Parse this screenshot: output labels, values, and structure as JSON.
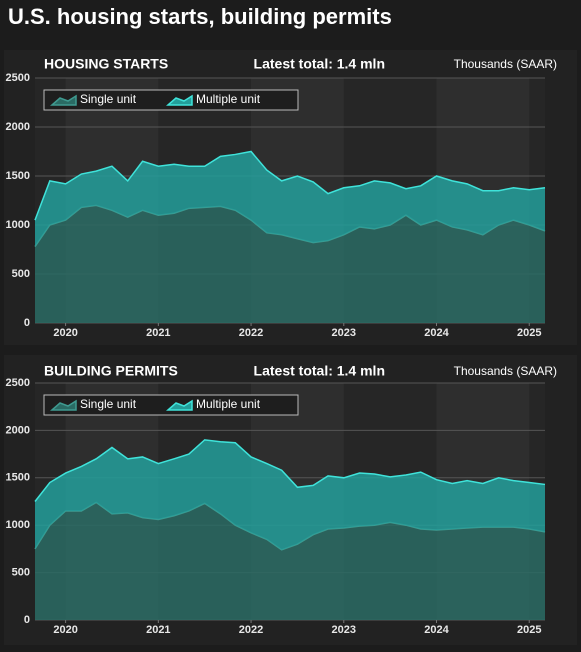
{
  "title": "U.S. housing starts, building permits",
  "chart_data": [
    {
      "type": "stacked-area",
      "title": "HOUSING STARTS",
      "subtitle": "Latest total: 1.4 mln",
      "unit": "Thousands (SAAR)",
      "x": [
        2019.67,
        2019.83,
        2020,
        2020.17,
        2020.33,
        2020.5,
        2020.67,
        2020.83,
        2021,
        2021.17,
        2021.33,
        2021.5,
        2021.67,
        2021.83,
        2022,
        2022.17,
        2022.33,
        2022.5,
        2022.67,
        2022.83,
        2023,
        2023.17,
        2023.33,
        2023.5,
        2023.67,
        2023.83,
        2024,
        2024.17,
        2024.33,
        2024.5,
        2024.67,
        2024.83,
        2025,
        2025.17
      ],
      "xlim": [
        2019.67,
        2025.17
      ],
      "xticks": [
        2020,
        2021,
        2022,
        2023,
        2024,
        2025
      ],
      "ylim": [
        0,
        2500
      ],
      "yticks": [
        0,
        500,
        1000,
        1500,
        2000,
        2500
      ],
      "grid": true,
      "legend": "top-left",
      "series": [
        {
          "name": "Single unit",
          "color": "#2a6b64",
          "line": "#3f9a90",
          "values": [
            780,
            1000,
            1050,
            1180,
            1200,
            1150,
            1080,
            1150,
            1100,
            1120,
            1170,
            1180,
            1190,
            1150,
            1050,
            920,
            900,
            860,
            820,
            840,
            900,
            980,
            960,
            1000,
            1100,
            1000,
            1050,
            980,
            950,
            900,
            1000,
            1050,
            1000,
            940
          ]
        },
        {
          "name": "Multiple unit",
          "color": "#239f9b",
          "line": "#3fe3da",
          "values": [
            270,
            450,
            370,
            340,
            350,
            450,
            370,
            500,
            500,
            500,
            430,
            420,
            510,
            570,
            700,
            640,
            550,
            640,
            620,
            480,
            480,
            420,
            490,
            430,
            270,
            400,
            450,
            470,
            470,
            450,
            350,
            330,
            360,
            440
          ]
        }
      ]
    },
    {
      "type": "stacked-area",
      "title": "BUILDING PERMITS",
      "subtitle": "Latest total: 1.4 mln",
      "unit": "Thousands (SAAR)",
      "x": [
        2019.67,
        2019.83,
        2020,
        2020.17,
        2020.33,
        2020.5,
        2020.67,
        2020.83,
        2021,
        2021.17,
        2021.33,
        2021.5,
        2021.67,
        2021.83,
        2022,
        2022.17,
        2022.33,
        2022.5,
        2022.67,
        2022.83,
        2023,
        2023.17,
        2023.33,
        2023.5,
        2023.67,
        2023.83,
        2024,
        2024.17,
        2024.33,
        2024.5,
        2024.67,
        2024.83,
        2025,
        2025.17
      ],
      "xlim": [
        2019.67,
        2025.17
      ],
      "xticks": [
        2020,
        2021,
        2022,
        2023,
        2024,
        2025
      ],
      "ylim": [
        0,
        2500
      ],
      "yticks": [
        0,
        500,
        1000,
        1500,
        2000,
        2500
      ],
      "grid": true,
      "legend": "top-left",
      "series": [
        {
          "name": "Single unit",
          "color": "#2a6b64",
          "line": "#3f9a90",
          "values": [
            750,
            1000,
            1150,
            1150,
            1240,
            1120,
            1130,
            1080,
            1060,
            1100,
            1150,
            1230,
            1120,
            1000,
            920,
            850,
            740,
            800,
            900,
            960,
            970,
            990,
            1000,
            1030,
            1000,
            960,
            950,
            960,
            970,
            980,
            980,
            980,
            960,
            930
          ]
        },
        {
          "name": "Multiple unit",
          "color": "#239f9b",
          "line": "#3fe3da",
          "values": [
            500,
            450,
            400,
            470,
            460,
            700,
            570,
            640,
            590,
            600,
            600,
            670,
            760,
            870,
            800,
            800,
            840,
            600,
            520,
            560,
            530,
            560,
            540,
            480,
            530,
            600,
            530,
            480,
            500,
            460,
            520,
            490,
            490,
            500
          ]
        }
      ]
    }
  ]
}
